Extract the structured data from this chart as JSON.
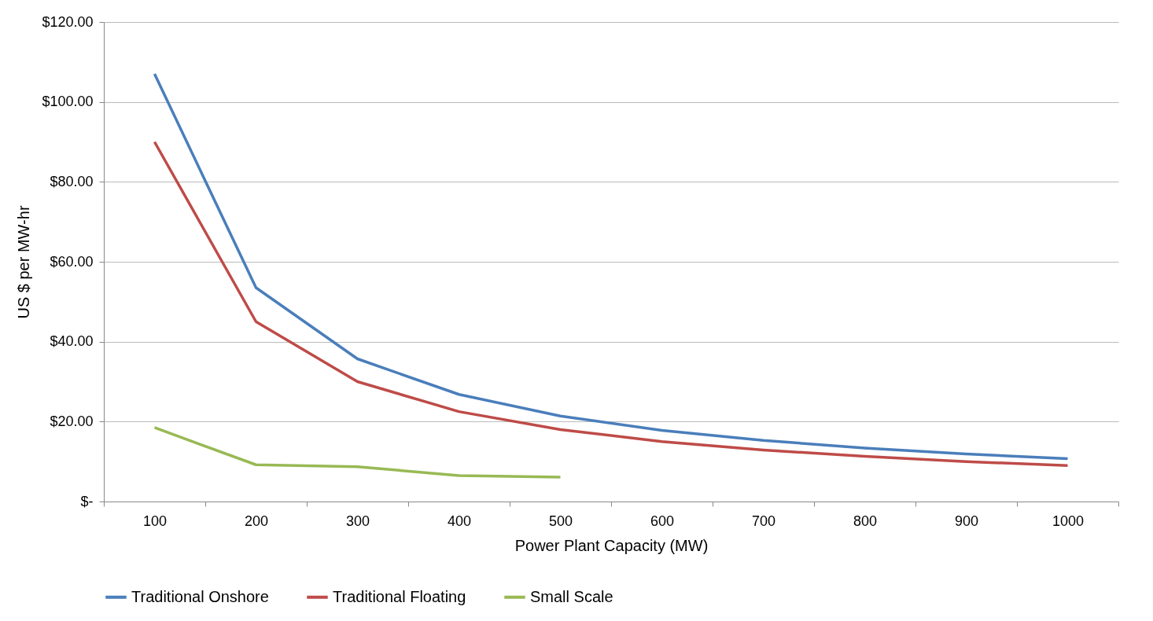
{
  "chart_data": {
    "type": "line",
    "xlabel": "Power Plant Capacity (MW)",
    "ylabel": "US $ per MW-hr",
    "categories": [
      "100",
      "200",
      "300",
      "400",
      "500",
      "600",
      "700",
      "800",
      "900",
      "1000"
    ],
    "series": [
      {
        "name": "Traditional Onshore",
        "color": "#4a7ebb",
        "values": [
          107,
          53.5,
          35.7,
          26.8,
          21.4,
          17.8,
          15.3,
          13.4,
          11.9,
          10.7
        ]
      },
      {
        "name": "Traditional Floating",
        "color": "#be4b48",
        "values": [
          90,
          45,
          30,
          22.5,
          18,
          15,
          12.9,
          11.3,
          10,
          9
        ]
      },
      {
        "name": "Small Scale",
        "color": "#98b954",
        "values": [
          18.5,
          9.2,
          8.7,
          6.5,
          6.1,
          null,
          null,
          null,
          null,
          null
        ]
      }
    ],
    "ylim": [
      0,
      120
    ],
    "yticks": [
      {
        "value": 0,
        "label": "$-"
      },
      {
        "value": 20,
        "label": "$20.00"
      },
      {
        "value": 40,
        "label": "$40.00"
      },
      {
        "value": 60,
        "label": "$60.00"
      },
      {
        "value": 80,
        "label": "$80.00"
      },
      {
        "value": 100,
        "label": "$100.00"
      },
      {
        "value": 120,
        "label": "$120.00"
      }
    ],
    "grid": "y",
    "legend": "bottom",
    "marker": "none",
    "line_style": "solid"
  }
}
